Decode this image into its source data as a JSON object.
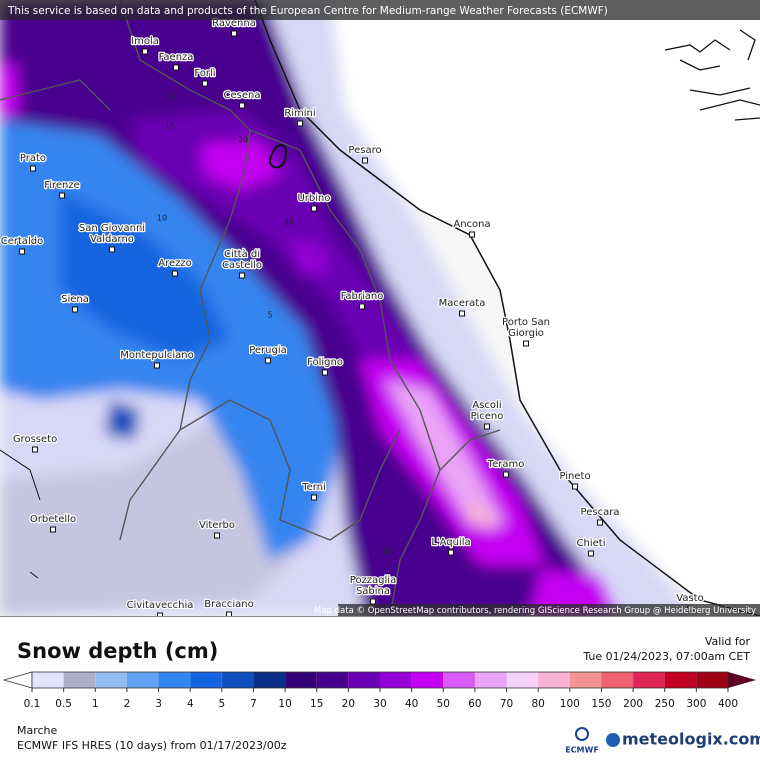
{
  "attribution": "This service is based on data and products of the European Centre for Medium-range Weather Forecasts (ECMWF)",
  "map_credit": "Map data © OpenStreetMap contributors, rendering GIScience Research Group @ Heidelberg University",
  "cities": [
    [
      "Ravenna"
    ],
    [
      "Imola"
    ],
    [
      "Faenza"
    ],
    [
      "Forlì"
    ],
    [
      "Cesena"
    ],
    [
      "Rimini"
    ],
    [
      "Pesaro"
    ],
    [
      "Prato"
    ],
    [
      "Firenze"
    ],
    [
      "Urbino"
    ],
    [
      "Ancona"
    ],
    [
      "San Giovanni",
      "Valdarno"
    ],
    [
      "Certaldo"
    ],
    [
      "Città di",
      "Castello"
    ],
    [
      "Arezzo"
    ],
    [
      "Fabriano"
    ],
    [
      "Macerata"
    ],
    [
      "Siena"
    ],
    [
      "Porto San",
      "Giorgio"
    ],
    [
      "Perugia"
    ],
    [
      "Montepulciano"
    ],
    [
      "Foligno"
    ],
    [
      "Ascoli",
      "Piceno"
    ],
    [
      "Grosseto"
    ],
    [
      "Teramo"
    ],
    [
      "Pineto"
    ],
    [
      "Terni"
    ],
    [
      "Pescara"
    ],
    [
      "Orbetello"
    ],
    [
      "Viterbo"
    ],
    [
      "L'Aquila"
    ],
    [
      "Chieti"
    ],
    [
      "Pozzaglia",
      "Sabina"
    ],
    [
      "Vasto"
    ],
    [
      "Civitavecchia"
    ],
    [
      "Bracciano"
    ]
  ],
  "contour_labels": [
    10,
    15,
    20,
    10,
    20,
    5,
    15
  ],
  "legend": {
    "title": "Snow depth (cm)",
    "levels": [
      0.1,
      0.5,
      1,
      2,
      3,
      4,
      5,
      7,
      10,
      15,
      20,
      30,
      40,
      50,
      60,
      70,
      80,
      100,
      150,
      200,
      250,
      300,
      400
    ],
    "colors": [
      "#e2e2fa",
      "#aeaecc",
      "#92bcf2",
      "#62a2f2",
      "#3585f0",
      "#1565e0",
      "#0f4fbe",
      "#0a2f82",
      "#340075",
      "#48008f",
      "#6a00b4",
      "#9400d6",
      "#c400f2",
      "#d65af4",
      "#eaa4f6",
      "#f4d2fa",
      "#f8b2d4",
      "#f29494",
      "#f06272",
      "#de2452",
      "#c20024",
      "#9e0014"
    ],
    "below_color": "#ffffff",
    "above_color": "#5e0022"
  },
  "valid_label": "Valid for",
  "valid_time": "Tue 01/24/2023, 07:00am CET",
  "region": "Marche",
  "model": "ECMWF IFS HRES (10 days)  from  01/17/2023/00z",
  "ecmwf_logo": "ECMWF",
  "brand": "meteologix.com"
}
